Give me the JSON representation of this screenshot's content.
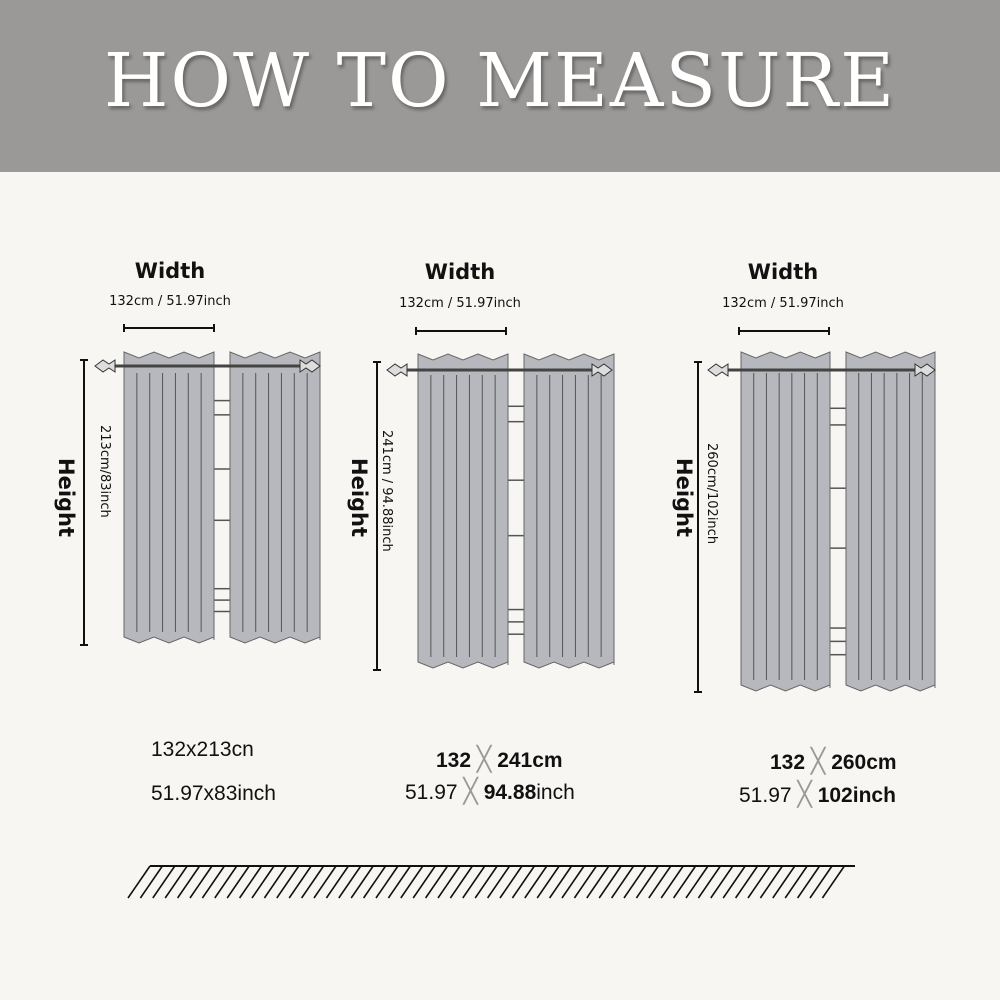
{
  "header": {
    "title": "HOW TO MEASURE",
    "background": "#9b9997"
  },
  "curtain_color": "#b7b8bd",
  "panels": [
    {
      "width_label": "Width",
      "width_value": "132cm / 51.97inch",
      "height_label": "Height",
      "height_value": "213cm/83inch",
      "size_cm": "132x213cn",
      "size_inch": "51.97x83inch"
    },
    {
      "width_label": "Width",
      "width_value": "132cm / 51.97inch",
      "height_label": "Height",
      "height_value": "241cm  / 94.88inch",
      "size_cm": {
        "w": "132",
        "x": "╳",
        "h": "241cm"
      },
      "size_inch": {
        "w": "51.97",
        "x": "╳",
        "h": "94.88",
        "unit": "inch"
      }
    },
    {
      "width_label": "Width",
      "width_value": "132cm / 51.97inch",
      "height_label": "Height",
      "height_value": "260cm/102inch",
      "size_cm": {
        "w": "132",
        "x": "╳",
        "h": "260cm"
      },
      "size_inch": {
        "w": "51.97",
        "x": "╳",
        "h": "102inch"
      }
    }
  ]
}
